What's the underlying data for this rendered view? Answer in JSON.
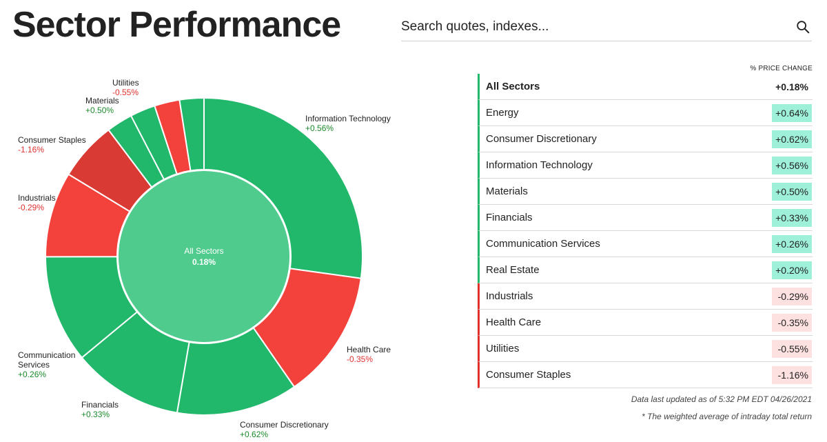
{
  "header": {
    "title": "Sector Performance",
    "search_placeholder": "Search quotes, indexes..."
  },
  "chart_data": {
    "type": "pie",
    "center": {
      "label": "All Sectors",
      "value": "0.18%"
    },
    "slices": [
      {
        "name": "Information Technology",
        "weight": 27.5,
        "change": "+0.56%",
        "direction": "up"
      },
      {
        "name": "Health Care",
        "weight": 13.3,
        "change": "-0.35%",
        "direction": "down"
      },
      {
        "name": "Consumer Discretionary",
        "weight": 12.5,
        "change": "+0.62%",
        "direction": "up"
      },
      {
        "name": "Financials",
        "weight": 11.4,
        "change": "+0.33%",
        "direction": "up"
      },
      {
        "name": "Communication Services",
        "weight": 11.1,
        "change": "+0.26%",
        "direction": "up"
      },
      {
        "name": "Industrials",
        "weight": 8.8,
        "change": "-0.29%",
        "direction": "down"
      },
      {
        "name": "Consumer Staples",
        "weight": 6.1,
        "change": "-1.16%",
        "direction": "down"
      },
      {
        "name": "Energy",
        "weight": 2.7,
        "change": "+0.64%",
        "direction": "up"
      },
      {
        "name": "Materials",
        "weight": 2.6,
        "change": "+0.50%",
        "direction": "up"
      },
      {
        "name": "Utilities",
        "weight": 2.6,
        "change": "-0.55%",
        "direction": "down"
      },
      {
        "name": "Real Estate",
        "weight": 2.5,
        "change": "+0.20%",
        "direction": "up"
      }
    ],
    "colors": {
      "up": "#22b86b",
      "up_stronger": "#1fb062",
      "down": "#f3413c",
      "down_stronger": "#d93a33",
      "center": "#4fcb8d"
    }
  },
  "table": {
    "column_header": "% PRICE CHANGE",
    "all": {
      "name": "All Sectors",
      "value": "+0.18%"
    },
    "rows": [
      {
        "name": "Energy",
        "value": "+0.64%",
        "direction": "up"
      },
      {
        "name": "Consumer Discretionary",
        "value": "+0.62%",
        "direction": "up"
      },
      {
        "name": "Information Technology",
        "value": "+0.56%",
        "direction": "up"
      },
      {
        "name": "Materials",
        "value": "+0.50%",
        "direction": "up"
      },
      {
        "name": "Financials",
        "value": "+0.33%",
        "direction": "up"
      },
      {
        "name": "Communication Services",
        "value": "+0.26%",
        "direction": "up"
      },
      {
        "name": "Real Estate",
        "value": "+0.20%",
        "direction": "up"
      },
      {
        "name": "Industrials",
        "value": "-0.29%",
        "direction": "down"
      },
      {
        "name": "Health Care",
        "value": "-0.35%",
        "direction": "down"
      },
      {
        "name": "Utilities",
        "value": "-0.55%",
        "direction": "down"
      },
      {
        "name": "Consumer Staples",
        "value": "-1.16%",
        "direction": "down"
      }
    ]
  },
  "footer": {
    "updated": "Data last updated as of 5:32 PM EDT 04/26/2021",
    "note": "* The weighted average of intraday total return"
  },
  "icons": {
    "search": "search-icon"
  }
}
